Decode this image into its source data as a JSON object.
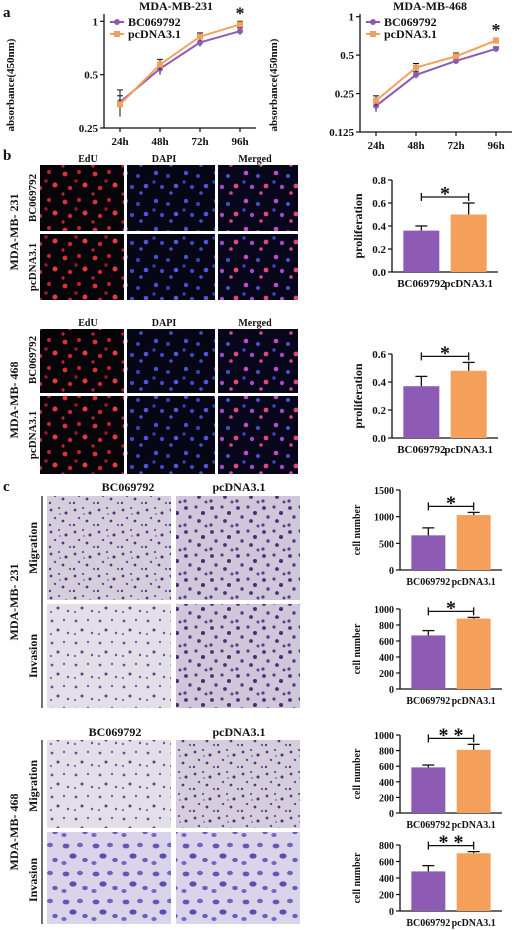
{
  "panel_labels": {
    "a": "a",
    "b": "b",
    "c": "c"
  },
  "colors": {
    "purple": "#8e5bb4",
    "orange": "#f4a05a",
    "cell_red": "#e0303a",
    "cell_blue": "#4850d8",
    "transwell_bg": "#cfc5da",
    "transwell_cell": "#5b3a86"
  },
  "panel_a": {
    "ylabel": "absorbance(450nm)",
    "x": [
      "24h",
      "48h",
      "72h",
      "96h"
    ],
    "significance": "*",
    "legend": [
      "BC069792",
      "pcDNA3.1"
    ]
  },
  "panel_b": {
    "columns": [
      "EdU",
      "DAPI",
      "Merged"
    ],
    "rows": [
      "BC069792",
      "pcDNA3.1"
    ],
    "cell_lines": [
      "MDA-MB- 231",
      "MDA-MB- 468"
    ],
    "bar_ylabel": "proliferation",
    "bar_categories": [
      "BC069792",
      "pcDNA3.1"
    ],
    "significance": "*"
  },
  "panel_c": {
    "columns": [
      "BC069792",
      "pcDNA3.1"
    ],
    "rows": [
      "Migration",
      "Invasion"
    ],
    "cell_lines": [
      "MDA-MB- 231",
      "MDA-MB- 468"
    ],
    "bar_ylabel": "cell number",
    "bar_categories": [
      "BC069792",
      "pcDNA3.1"
    ]
  },
  "chart_data": [
    {
      "type": "line",
      "title": "MDA-MB-231",
      "ylabel": "absorbance(450nm)",
      "x": [
        "24h",
        "48h",
        "72h",
        "96h"
      ],
      "series": [
        {
          "name": "BC069792",
          "values": [
            0.35,
            0.54,
            0.76,
            0.88
          ],
          "errors": [
            0.06,
            0.04,
            0.04,
            0.04
          ]
        },
        {
          "name": "pcDNA3.1",
          "values": [
            0.34,
            0.57,
            0.82,
            0.96
          ],
          "errors": [
            0.04,
            0.04,
            0.04,
            0.04
          ]
        }
      ],
      "yscale": "log",
      "yticks": [
        0.25,
        0.5,
        1
      ],
      "yticklabels": [
        "0.25",
        "0.5",
        "1"
      ],
      "ylim": [
        0.25,
        1.1
      ],
      "annotation": "*",
      "legend": "top-left"
    },
    {
      "type": "line",
      "title": "MDA-MB-468",
      "ylabel": "absorbance(450nm)",
      "x": [
        "24h",
        "48h",
        "72h",
        "96h"
      ],
      "series": [
        {
          "name": "BC069792",
          "values": [
            0.2,
            0.35,
            0.45,
            0.56
          ],
          "errors": [
            0.02,
            0.02,
            0.02,
            0.02
          ]
        },
        {
          "name": "pcDNA3.1",
          "values": [
            0.22,
            0.4,
            0.49,
            0.65
          ],
          "errors": [
            0.02,
            0.03,
            0.03,
            0.03
          ]
        }
      ],
      "yscale": "log",
      "yticks": [
        0.125,
        0.25,
        0.5,
        1
      ],
      "yticklabels": [
        "0.125",
        "0.25",
        "0.5",
        "1"
      ],
      "ylim": [
        0.125,
        1.05
      ],
      "annotation": "*",
      "legend": "top-left"
    },
    {
      "type": "bar",
      "categories": [
        "BC069792",
        "pcDNA3.1"
      ],
      "values": [
        0.36,
        0.5
      ],
      "errors": [
        0.04,
        0.1
      ],
      "ylabel": "proliferation",
      "ylim": [
        0,
        0.8
      ],
      "yticks": [
        0,
        0.2,
        0.4,
        0.6,
        0.8
      ],
      "yticklabels": [
        "0.0",
        "0.2",
        "0.4",
        "0.6",
        "0.8"
      ],
      "annotation": "*"
    },
    {
      "type": "bar",
      "categories": [
        "BC069792",
        "pcDNA3.1"
      ],
      "values": [
        0.37,
        0.48
      ],
      "errors": [
        0.07,
        0.06
      ],
      "ylabel": "proliferation",
      "ylim": [
        0,
        0.6
      ],
      "yticks": [
        0,
        0.2,
        0.4,
        0.6
      ],
      "yticklabels": [
        "0.0",
        "0.2",
        "0.4",
        "0.6"
      ],
      "annotation": "*"
    },
    {
      "type": "bar",
      "categories": [
        "BC069792",
        "pcDNA3.1"
      ],
      "values": [
        650,
        1030
      ],
      "errors": [
        140,
        50
      ],
      "ylabel": "cell number",
      "ylim": [
        0,
        1500
      ],
      "yticks": [
        0,
        500,
        1000,
        1500
      ],
      "yticklabels": [
        "0",
        "500",
        "1000",
        "1500"
      ],
      "annotation": "*"
    },
    {
      "type": "bar",
      "categories": [
        "BC069792",
        "pcDNA3.1"
      ],
      "values": [
        670,
        880
      ],
      "errors": [
        60,
        15
      ],
      "ylabel": "cell number",
      "ylim": [
        0,
        1000
      ],
      "yticks": [
        0,
        200,
        400,
        600,
        800,
        1000
      ],
      "yticklabels": [
        "0",
        "200",
        "400",
        "600",
        "800",
        "1000"
      ],
      "annotation": "*"
    },
    {
      "type": "bar",
      "categories": [
        "BC069792",
        "pcDNA3.1"
      ],
      "values": [
        585,
        810
      ],
      "errors": [
        30,
        70
      ],
      "ylabel": "cell number",
      "ylim": [
        0,
        1000
      ],
      "yticks": [
        0,
        200,
        400,
        600,
        800,
        1000
      ],
      "yticklabels": [
        "0",
        "200",
        "400",
        "600",
        "800",
        "1000"
      ],
      "annotation": "* *"
    },
    {
      "type": "bar",
      "categories": [
        "BC069792",
        "pcDNA3.1"
      ],
      "values": [
        480,
        700
      ],
      "errors": [
        70,
        20
      ],
      "ylabel": "cell number",
      "ylim": [
        0,
        800
      ],
      "yticks": [
        0,
        200,
        400,
        600,
        800
      ],
      "yticklabels": [
        "0",
        "200",
        "400",
        "600",
        "800"
      ],
      "annotation": "* *"
    }
  ]
}
